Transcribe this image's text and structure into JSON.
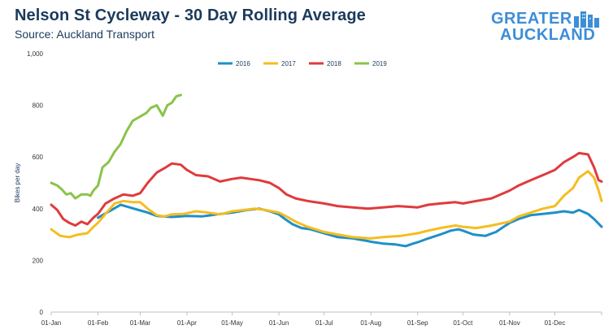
{
  "header": {
    "title": "Nelson St Cycleway - 30 Day Rolling Average",
    "subtitle": "Source: Auckland Transport"
  },
  "logo": {
    "line1": "GREATER",
    "line2": "AUCKLAND",
    "accent": "#3d8ed6"
  },
  "chart_data": {
    "type": "line",
    "title": "Nelson St Cycleway - 30 Day Rolling Average",
    "subtitle": "Source: Auckland Transport",
    "ylabel": "Bikes per day",
    "xlabel": "",
    "ylim": [
      0,
      1000
    ],
    "yticks": [
      0,
      200,
      400,
      600,
      800,
      1000
    ],
    "ytick_labels": [
      "0",
      "200",
      "400",
      "600",
      "800",
      "1,000"
    ],
    "xlim": [
      0,
      365
    ],
    "xticks": [
      0,
      31,
      59,
      90,
      120,
      151,
      181,
      212,
      243,
      273,
      304,
      334,
      365
    ],
    "xtick_labels": [
      "01-Jan",
      "01-Feb",
      "01-Mar",
      "01-Apr",
      "01-May",
      "01-Jun",
      "01-Jul",
      "01-Aug",
      "01-Sep",
      "01-Oct",
      "01-Nov",
      "01-Dec",
      ""
    ],
    "grid": false,
    "legend": "top-center",
    "x_unit": "day of year",
    "series": [
      {
        "name": "2016",
        "color": "#1f8fc8",
        "points": [
          [
            31,
            365
          ],
          [
            40,
            395
          ],
          [
            46,
            415
          ],
          [
            52,
            405
          ],
          [
            58,
            395
          ],
          [
            64,
            385
          ],
          [
            70,
            372
          ],
          [
            80,
            368
          ],
          [
            90,
            372
          ],
          [
            100,
            370
          ],
          [
            110,
            378
          ],
          [
            120,
            385
          ],
          [
            130,
            395
          ],
          [
            138,
            400
          ],
          [
            145,
            390
          ],
          [
            151,
            378
          ],
          [
            155,
            360
          ],
          [
            160,
            340
          ],
          [
            166,
            325
          ],
          [
            172,
            320
          ],
          [
            181,
            305
          ],
          [
            190,
            290
          ],
          [
            200,
            285
          ],
          [
            210,
            275
          ],
          [
            212,
            272
          ],
          [
            220,
            265
          ],
          [
            228,
            262
          ],
          [
            235,
            255
          ],
          [
            240,
            265
          ],
          [
            243,
            270
          ],
          [
            250,
            285
          ],
          [
            258,
            300
          ],
          [
            265,
            315
          ],
          [
            270,
            320
          ],
          [
            273,
            315
          ],
          [
            280,
            300
          ],
          [
            288,
            295
          ],
          [
            295,
            310
          ],
          [
            300,
            330
          ],
          [
            304,
            345
          ],
          [
            310,
            360
          ],
          [
            318,
            375
          ],
          [
            326,
            380
          ],
          [
            334,
            385
          ],
          [
            340,
            390
          ],
          [
            346,
            385
          ],
          [
            350,
            395
          ],
          [
            356,
            380
          ],
          [
            360,
            360
          ],
          [
            365,
            330
          ]
        ]
      },
      {
        "name": "2017",
        "color": "#f5bd1f",
        "points": [
          [
            0,
            320
          ],
          [
            6,
            295
          ],
          [
            12,
            290
          ],
          [
            18,
            300
          ],
          [
            24,
            305
          ],
          [
            28,
            330
          ],
          [
            31,
            345
          ],
          [
            36,
            380
          ],
          [
            42,
            420
          ],
          [
            48,
            430
          ],
          [
            54,
            425
          ],
          [
            59,
            425
          ],
          [
            64,
            400
          ],
          [
            70,
            375
          ],
          [
            75,
            370
          ],
          [
            80,
            378
          ],
          [
            88,
            380
          ],
          [
            96,
            390
          ],
          [
            104,
            385
          ],
          [
            112,
            378
          ],
          [
            120,
            390
          ],
          [
            128,
            395
          ],
          [
            135,
            400
          ],
          [
            142,
            395
          ],
          [
            151,
            385
          ],
          [
            156,
            370
          ],
          [
            162,
            350
          ],
          [
            170,
            330
          ],
          [
            181,
            310
          ],
          [
            190,
            300
          ],
          [
            200,
            290
          ],
          [
            212,
            285
          ],
          [
            220,
            290
          ],
          [
            232,
            295
          ],
          [
            243,
            305
          ],
          [
            250,
            315
          ],
          [
            258,
            325
          ],
          [
            268,
            335
          ],
          [
            273,
            330
          ],
          [
            282,
            325
          ],
          [
            292,
            335
          ],
          [
            304,
            350
          ],
          [
            310,
            370
          ],
          [
            318,
            385
          ],
          [
            326,
            400
          ],
          [
            334,
            410
          ],
          [
            340,
            450
          ],
          [
            346,
            480
          ],
          [
            350,
            520
          ],
          [
            356,
            545
          ],
          [
            360,
            520
          ],
          [
            363,
            470
          ],
          [
            365,
            430
          ]
        ]
      },
      {
        "name": "2018",
        "color": "#e03a3c",
        "points": [
          [
            0,
            415
          ],
          [
            4,
            395
          ],
          [
            8,
            360
          ],
          [
            12,
            345
          ],
          [
            16,
            335
          ],
          [
            20,
            350
          ],
          [
            24,
            340
          ],
          [
            28,
            365
          ],
          [
            31,
            380
          ],
          [
            36,
            420
          ],
          [
            42,
            440
          ],
          [
            48,
            455
          ],
          [
            54,
            450
          ],
          [
            59,
            460
          ],
          [
            64,
            500
          ],
          [
            70,
            540
          ],
          [
            76,
            560
          ],
          [
            80,
            575
          ],
          [
            86,
            570
          ],
          [
            90,
            550
          ],
          [
            96,
            530
          ],
          [
            104,
            525
          ],
          [
            112,
            505
          ],
          [
            120,
            515
          ],
          [
            126,
            520
          ],
          [
            132,
            515
          ],
          [
            138,
            510
          ],
          [
            145,
            500
          ],
          [
            151,
            480
          ],
          [
            156,
            455
          ],
          [
            162,
            440
          ],
          [
            170,
            430
          ],
          [
            181,
            420
          ],
          [
            190,
            410
          ],
          [
            200,
            405
          ],
          [
            210,
            400
          ],
          [
            220,
            405
          ],
          [
            230,
            410
          ],
          [
            243,
            405
          ],
          [
            250,
            415
          ],
          [
            258,
            420
          ],
          [
            268,
            425
          ],
          [
            273,
            420
          ],
          [
            282,
            430
          ],
          [
            292,
            440
          ],
          [
            300,
            460
          ],
          [
            304,
            470
          ],
          [
            310,
            490
          ],
          [
            318,
            510
          ],
          [
            326,
            530
          ],
          [
            334,
            550
          ],
          [
            340,
            580
          ],
          [
            346,
            600
          ],
          [
            350,
            615
          ],
          [
            356,
            610
          ],
          [
            360,
            560
          ],
          [
            363,
            510
          ],
          [
            365,
            505
          ]
        ]
      },
      {
        "name": "2019",
        "color": "#8bc34a",
        "points": [
          [
            0,
            500
          ],
          [
            4,
            490
          ],
          [
            7,
            475
          ],
          [
            10,
            455
          ],
          [
            13,
            460
          ],
          [
            16,
            440
          ],
          [
            20,
            455
          ],
          [
            24,
            455
          ],
          [
            26,
            450
          ],
          [
            28,
            470
          ],
          [
            31,
            490
          ],
          [
            34,
            560
          ],
          [
            38,
            580
          ],
          [
            42,
            620
          ],
          [
            46,
            650
          ],
          [
            50,
            700
          ],
          [
            54,
            740
          ],
          [
            57,
            750
          ],
          [
            60,
            760
          ],
          [
            63,
            770
          ],
          [
            66,
            790
          ],
          [
            70,
            800
          ],
          [
            74,
            760
          ],
          [
            77,
            800
          ],
          [
            80,
            810
          ],
          [
            83,
            835
          ],
          [
            86,
            840
          ]
        ]
      }
    ]
  }
}
